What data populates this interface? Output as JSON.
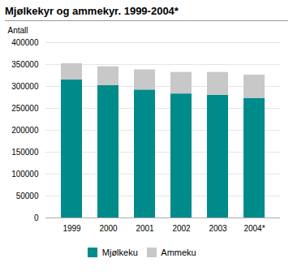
{
  "chart_data": {
    "type": "bar",
    "title": "Mjølkekyr og ammekyr. 1999-2004*",
    "ylabel": "Antall",
    "categories": [
      "1999",
      "2000",
      "2001",
      "2002",
      "2003",
      "2004*"
    ],
    "series": [
      {
        "name": "Mjølkeku",
        "color": "#008B8B",
        "values": [
          315000,
          302000,
          292000,
          283000,
          280000,
          273000
        ]
      },
      {
        "name": "Ammeku",
        "color": "#c8c8c8",
        "values": [
          37000,
          43000,
          46000,
          49000,
          52000,
          53000
        ]
      }
    ],
    "stacked": true,
    "ylim": [
      0,
      400000
    ],
    "yticks": [
      0,
      50000,
      100000,
      150000,
      200000,
      250000,
      300000,
      350000,
      400000
    ],
    "grid": true,
    "legend": "bottom"
  }
}
